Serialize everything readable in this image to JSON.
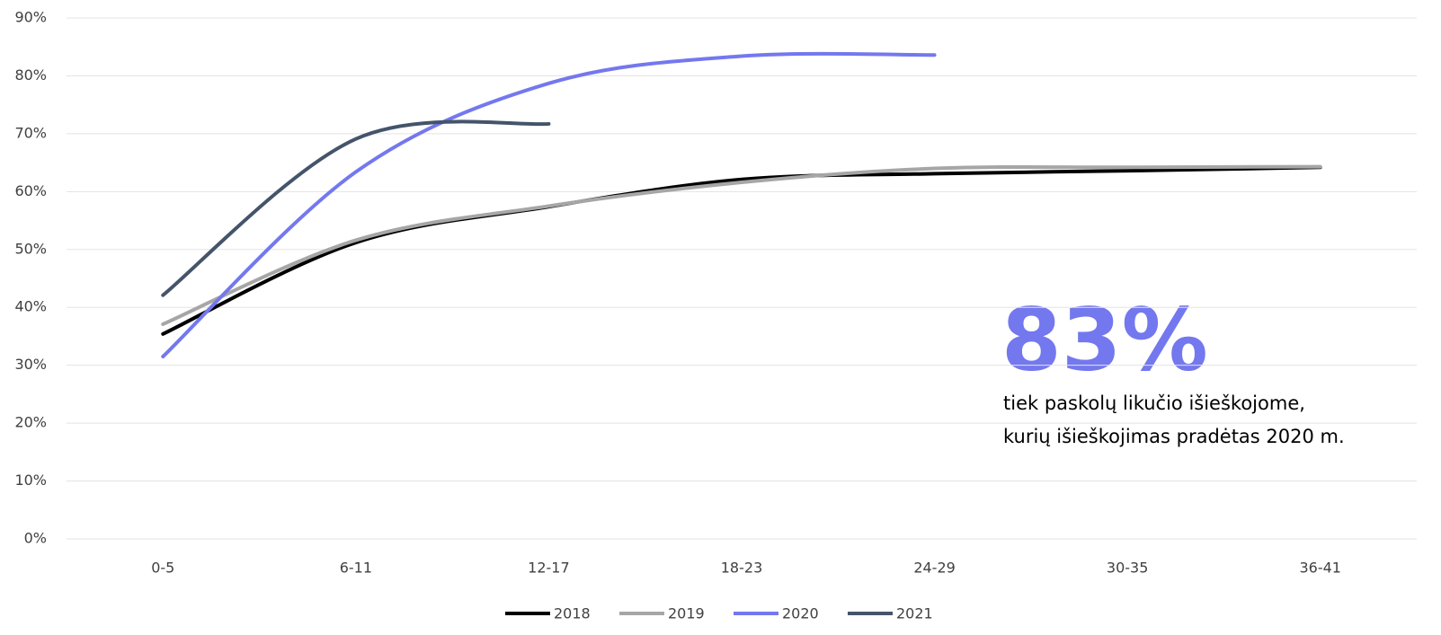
{
  "chart_data": {
    "type": "line",
    "categories": [
      "0-5",
      "6-11",
      "12-17",
      "18-23",
      "24-29",
      "30-35",
      "36-41"
    ],
    "series": [
      {
        "name": "2018",
        "color": "#000000",
        "values": [
          35.4,
          51.2,
          57.4,
          62.1,
          63.1,
          63.6,
          64.2
        ]
      },
      {
        "name": "2019",
        "color": "#a6a6a6",
        "values": [
          37.1,
          51.6,
          57.5,
          61.6,
          64.0,
          64.2,
          64.3
        ]
      },
      {
        "name": "2020",
        "color": "#7478ee",
        "values": [
          31.5,
          63.4,
          78.7,
          83.4,
          83.6,
          null,
          null
        ]
      },
      {
        "name": "2021",
        "color": "#44546a",
        "values": [
          42.1,
          69.1,
          71.7,
          null,
          null,
          null,
          null
        ]
      }
    ],
    "ylim": [
      0,
      90
    ],
    "yticks": [
      {
        "value": 0,
        "label": "0%"
      },
      {
        "value": 10,
        "label": "10%"
      },
      {
        "value": 20,
        "label": "20%"
      },
      {
        "value": 30,
        "label": "30%"
      },
      {
        "value": 40,
        "label": "40%"
      },
      {
        "value": 50,
        "label": "50%"
      },
      {
        "value": 60,
        "label": "60%"
      },
      {
        "value": 70,
        "label": "70%"
      },
      {
        "value": 80,
        "label": "80%"
      },
      {
        "value": 90,
        "label": "90%"
      }
    ],
    "grid": true,
    "legend": "bottom",
    "annotations": [
      "83%",
      "tiek paskolų likučio išieškojome,",
      "kurių išieškojimas pradėtas 2020 m."
    ],
    "annotation_color": "#7478ee"
  }
}
